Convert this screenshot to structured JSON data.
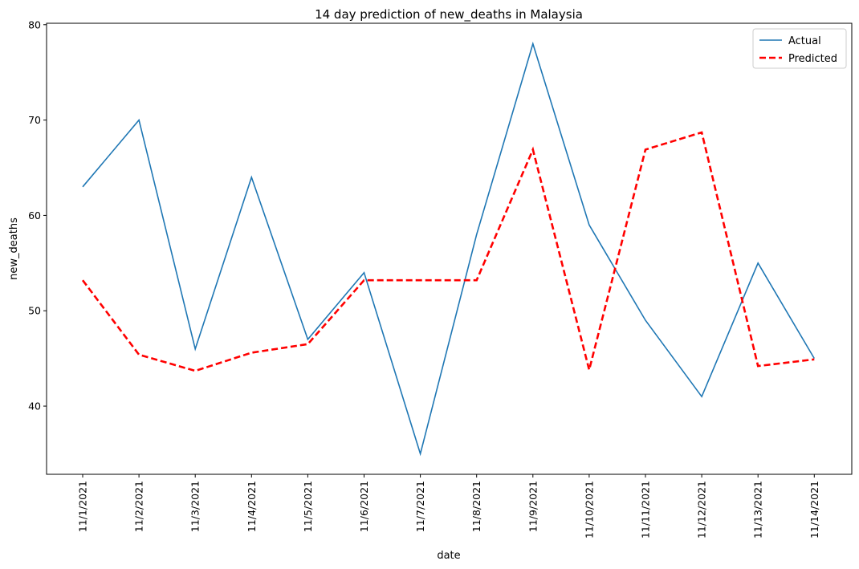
{
  "chart_data": {
    "type": "line",
    "title": "14 day prediction of new_deaths in Malaysia",
    "xlabel": "date",
    "ylabel": "new_deaths",
    "categories": [
      "11/1/2021",
      "11/2/2021",
      "11/3/2021",
      "11/4/2021",
      "11/5/2021",
      "11/6/2021",
      "11/7/2021",
      "11/8/2021",
      "11/9/2021",
      "11/10/2021",
      "11/11/2021",
      "11/12/2021",
      "11/13/2021",
      "11/14/2021"
    ],
    "ylim": [
      32.85,
      80.15
    ],
    "yticks": [
      40,
      50,
      60,
      70,
      80
    ],
    "grid": false,
    "legend_position": "top-right",
    "series": [
      {
        "name": "Actual",
        "color": "#1f77b4",
        "style": "solid",
        "values": [
          63,
          70,
          46,
          64,
          47,
          54,
          35,
          58,
          78,
          59,
          49,
          41,
          55,
          45
        ]
      },
      {
        "name": "Predicted",
        "color": "#ff0000",
        "style": "dashed",
        "values": [
          53.2,
          45.4,
          43.7,
          45.6,
          46.5,
          53.2,
          53.2,
          53.2,
          66.9,
          43.8,
          66.9,
          68.7,
          44.2,
          44.9
        ]
      }
    ]
  }
}
